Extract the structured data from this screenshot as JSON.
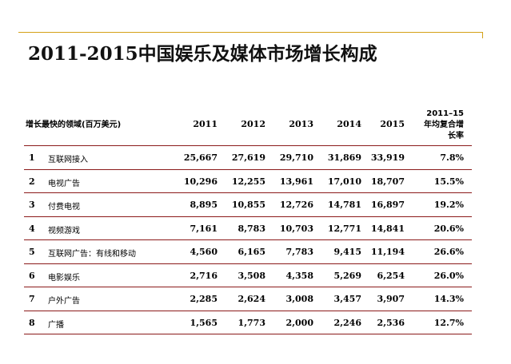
{
  "title": "2011-2015中国娱乐及媒体市场增长构成",
  "table": {
    "domain_header": "增长最快的领域(百万美元)",
    "years": [
      "2011",
      "2012",
      "2013",
      "2014",
      "2015"
    ],
    "cagr_header_line1": "2011–15",
    "cagr_header_line2": "年均复合增",
    "cagr_header_line3": "长率",
    "rows": [
      {
        "rank": "1",
        "category": "互联网接入",
        "v2011": "25,667",
        "v2012": "27,619",
        "v2013": "29,710",
        "v2014": "31,869",
        "v2015": "33,919",
        "cagr": "7.8%"
      },
      {
        "rank": "2",
        "category": "电视广告",
        "v2011": "10,296",
        "v2012": "12,255",
        "v2013": "13,961",
        "v2014": "17,010",
        "v2015": "18,707",
        "cagr": "15.5%"
      },
      {
        "rank": "3",
        "category": "付费电视",
        "v2011": "8,895",
        "v2012": "10,855",
        "v2013": "12,726",
        "v2014": "14,781",
        "v2015": "16,897",
        "cagr": "19.2%"
      },
      {
        "rank": "4",
        "category": "视频游戏",
        "v2011": "7,161",
        "v2012": "8,783",
        "v2013": "10,703",
        "v2014": "12,771",
        "v2015": "14,841",
        "cagr": "20.6%"
      },
      {
        "rank": "5",
        "category": "互联网广告：有线和移动",
        "v2011": "4,560",
        "v2012": "6,165",
        "v2013": "7,783",
        "v2014": "9,415",
        "v2015": "11,194",
        "cagr": "26.6%"
      },
      {
        "rank": "6",
        "category": "电影娱乐",
        "v2011": "2,716",
        "v2012": "3,508",
        "v2013": "4,358",
        "v2014": "5,269",
        "v2015": "6,254",
        "cagr": "26.0%"
      },
      {
        "rank": "7",
        "category": "户外广告",
        "v2011": "2,285",
        "v2012": "2,624",
        "v2013": "3,008",
        "v2014": "3,457",
        "v2015": "3,907",
        "cagr": "14.3%"
      },
      {
        "rank": "8",
        "category": "广播",
        "v2011": "1,565",
        "v2012": "1,773",
        "v2013": "2,000",
        "v2014": "2,246",
        "v2015": "2,536",
        "cagr": "12.7%"
      }
    ]
  },
  "colors": {
    "accent_rule": "#d4a017",
    "row_rule": "#8b1a1a"
  }
}
